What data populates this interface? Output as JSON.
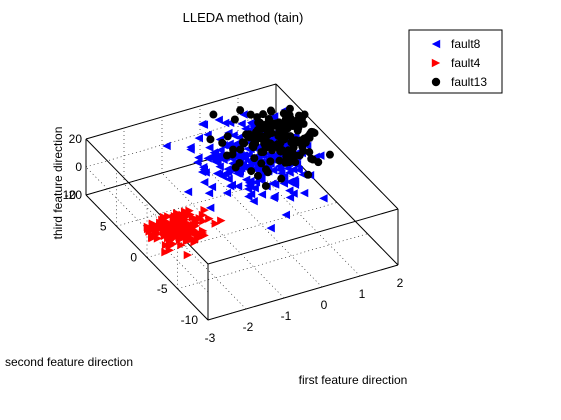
{
  "chart_data": {
    "type": "scatter",
    "projection": "3d",
    "title": "LLEDA method (tain)",
    "xlabel": "first feature direction",
    "ylabel": "second feature direction",
    "zlabel": "third  feature direction",
    "xlim": [
      -3,
      2
    ],
    "ylim": [
      -10,
      10
    ],
    "zlim": [
      -20,
      20
    ],
    "xticks": [
      "-3",
      "-2",
      "-1",
      "0",
      "1",
      "2"
    ],
    "yticks": [
      "-10",
      "-5",
      "0",
      "5",
      "10"
    ],
    "zticks": [
      "-20",
      "0",
      "20"
    ],
    "grid": true,
    "legend_position": "top-right",
    "series": [
      {
        "name": "fault8",
        "marker": "triangle-left",
        "color": "#0000ff",
        "center": [
          0.5,
          4,
          5
        ],
        "spread": [
          0.7,
          2.4,
          8
        ],
        "count": 240
      },
      {
        "name": "fault4",
        "marker": "triangle-right",
        "color": "#ff0000",
        "center": [
          -2.4,
          -1,
          0
        ],
        "spread": [
          0.35,
          0.8,
          3
        ],
        "count": 200
      },
      {
        "name": "fault13",
        "marker": "circle",
        "color": "#000000",
        "center": [
          1.2,
          5.5,
          6
        ],
        "spread": [
          0.55,
          2.0,
          7
        ],
        "count": 150
      }
    ]
  }
}
